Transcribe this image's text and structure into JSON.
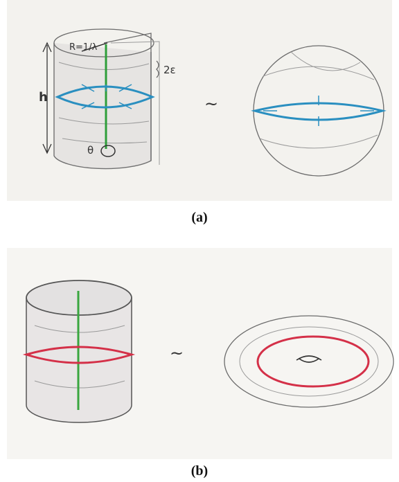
{
  "panels": [
    {
      "label": "(a)",
      "annotations": {
        "radius": "R=1/λ",
        "width": "2ε",
        "height": "h",
        "angle": "θ",
        "equivalence": "~"
      }
    },
    {
      "label": "(b)",
      "annotations": {
        "equivalence": "~"
      }
    }
  ]
}
